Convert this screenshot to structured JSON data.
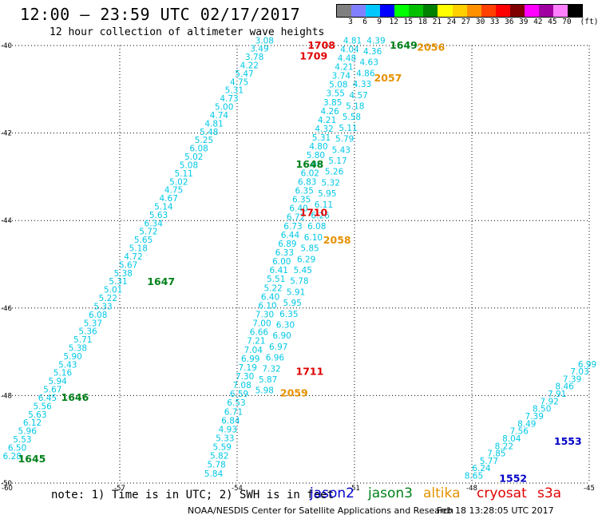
{
  "header": {
    "title": "12:00 — 23:59 UTC 02/17/2017",
    "subtitle": "12 hour collection of altimeter wave heights"
  },
  "legend": {
    "unit": "(ft)",
    "colors": [
      "#808080",
      "#8080ff",
      "#00c8ff",
      "#0000ff",
      "#00ff00",
      "#00c000",
      "#008000",
      "#ffff00",
      "#ffd000",
      "#ff9000",
      "#ff4000",
      "#ff0000",
      "#800000",
      "#ff00ff",
      "#a000a0",
      "#ff80ff",
      "#000000"
    ],
    "labels": [
      "3",
      "6",
      "9",
      "12",
      "15",
      "18",
      "21",
      "24",
      "27",
      "30",
      "33",
      "36",
      "39",
      "42",
      "45",
      "70"
    ]
  },
  "map": {
    "lon_min": -60,
    "lon_max": -45,
    "lat_min": -50,
    "lat_max": -40,
    "lon_ticks": [
      "-57",
      "-54",
      "-51",
      "-48",
      "-45"
    ],
    "lat_ticks": [
      "-40",
      "-42",
      "-44",
      "-46",
      "-48",
      "-50"
    ],
    "corner_label": "-60",
    "colors": {
      "swh": "#00c8e6",
      "jason2": "#0000c8",
      "jason3": "#00801a",
      "altika": "#e69100",
      "cryosat": "#e00000",
      "s3a": "#e00000"
    }
  },
  "tracks": [
    {
      "id": "A",
      "values": [
        "6.28",
        "6.50",
        "5.53",
        "5.96",
        "6.12",
        "5.63",
        "5.56",
        "6.45",
        "5.67",
        "5.94",
        "5.16",
        "5.43",
        "5.90",
        "5.38",
        "5.71",
        "5.36",
        "5.37",
        "6.08",
        "5.33",
        "5.22",
        "5.01",
        "5.31",
        "5.38",
        "5.67",
        "4.72",
        "5.18",
        "5.65",
        "5.72",
        "6.34",
        "5.63",
        "5.14",
        "4.67",
        "4.75",
        "5.02",
        "5.11",
        "5.08",
        "5.02",
        "6.08",
        "5.25",
        "5.48",
        "4.81",
        "4.74",
        "5.00",
        "4.73",
        "5.31",
        "4.75",
        "5.47",
        "4.22",
        "3.78",
        "3.49",
        "3.08"
      ]
    },
    {
      "id": "B",
      "values": [
        "5.84",
        "5.78",
        "5.82",
        "5.59",
        "5.33",
        "4.93",
        "6.84",
        "6.71",
        "6.53",
        "6.59",
        "7.08",
        "7.30",
        "7.19",
        "6.99",
        "7.04",
        "7.21",
        "6.66",
        "7.00",
        "7.30",
        "6.10",
        "6.40",
        "5.22",
        "5.51",
        "6.41",
        "6.00",
        "6.33",
        "6.89",
        "6.44",
        "6.73",
        "6.72",
        "6.40",
        "6.35",
        "6.35",
        "6.83",
        "6.02",
        "6.06",
        "5.80",
        "4.80",
        "5.31",
        "4.32",
        "4.21",
        "4.26",
        "3.85",
        "3.55",
        "5.08",
        "3.74",
        "4.21",
        "4.48",
        "4.04",
        "4.81"
      ]
    },
    {
      "id": "C",
      "values": [
        "5.98",
        "5.87",
        "7.32",
        "6.96",
        "6.97",
        "6.90",
        "6.30",
        "6.35",
        "5.95",
        "5.91",
        "5.78",
        "5.45",
        "6.29",
        "5.85",
        "6.10",
        "6.08",
        "6.26",
        "6.11",
        "5.95",
        "5.32",
        "5.26",
        "5.17",
        "5.43",
        "5.79",
        "5.11",
        "5.58",
        "5.18",
        "4.57",
        "4.33",
        "4.86",
        "4.63",
        "4.36",
        "4.39"
      ]
    },
    {
      "id": "D",
      "values": [
        "8.65",
        "6.24",
        "5.77",
        "7.85",
        "8.22",
        "8.04",
        "7.56",
        "8.49",
        "7.39",
        "8.50",
        "7.92",
        "7.91",
        "8.46",
        "7.39",
        "7.03",
        "6.99"
      ]
    }
  ],
  "pass_labels": [
    {
      "text": "1645",
      "sat": "jason3",
      "lon": -59.6,
      "lat": -49.45
    },
    {
      "text": "1646",
      "sat": "jason3",
      "lon": -58.5,
      "lat": -48.05
    },
    {
      "text": "1647",
      "sat": "jason3",
      "lon": -56.3,
      "lat": -45.4
    },
    {
      "text": "1648",
      "sat": "jason3",
      "lon": -52.5,
      "lat": -42.72
    },
    {
      "text": "1649",
      "sat": "jason3",
      "lon": -50.1,
      "lat": -40.0
    },
    {
      "text": "2056",
      "sat": "altika",
      "lon": -49.4,
      "lat": -40.05
    },
    {
      "text": "2057",
      "sat": "altika",
      "lon": -50.5,
      "lat": -40.75
    },
    {
      "text": "2058",
      "sat": "altika",
      "lon": -51.8,
      "lat": -44.45
    },
    {
      "text": "2059",
      "sat": "altika",
      "lon": -52.9,
      "lat": -47.95
    },
    {
      "text": "1708",
      "sat": "cryosat",
      "lon": -52.2,
      "lat": -40.0
    },
    {
      "text": "1709",
      "sat": "cryosat",
      "lon": -52.4,
      "lat": -40.25
    },
    {
      "text": "1710",
      "sat": "cryosat",
      "lon": -52.4,
      "lat": -43.82
    },
    {
      "text": "1711",
      "sat": "cryosat",
      "lon": -52.5,
      "lat": -47.45
    },
    {
      "text": "1552",
      "sat": "jason2",
      "lon": -47.3,
      "lat": -49.9
    },
    {
      "text": "1553",
      "sat": "jason2",
      "lon": -45.9,
      "lat": -49.05
    }
  ],
  "footer": {
    "note": "note: 1) Time is in UTC; 2) SWH is in feet",
    "satellites": [
      {
        "name": "jason2",
        "color": "#0000c8"
      },
      {
        "name": "jason3",
        "color": "#00801a"
      },
      {
        "name": "altika",
        "color": "#e69100"
      },
      {
        "name": "cryosat",
        "color": "#e00000"
      },
      {
        "name": "s3a",
        "color": "#e00000"
      }
    ],
    "credit": "NOAA/NESDIS Center for Satellite Applications and Research",
    "timestamp": "Feb 18 13:28:05 UTC 2017"
  }
}
